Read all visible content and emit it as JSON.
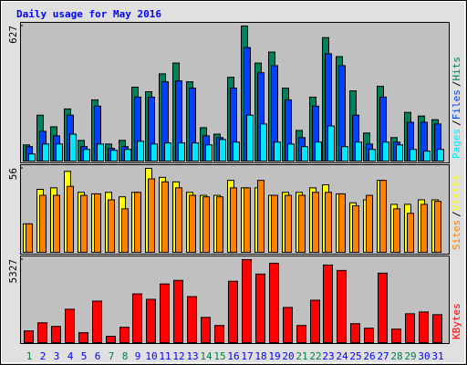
{
  "chart_data": [
    {
      "type": "bar",
      "title": "Daily usage for May 2016",
      "legend_separator": "/",
      "ylim": [
        0,
        627
      ],
      "yticks": [
        627
      ],
      "series": [
        {
          "name": "Hits",
          "color": "#00805c",
          "values": [
            75,
            213,
            159,
            242,
            96,
            284,
            79,
            96,
            343,
            322,
            405,
            455,
            368,
            155,
            125,
            389,
            627,
            455,
            506,
            339,
            142,
            297,
            573,
            485,
            326,
            130,
            347,
            109,
            226,
            209,
            192
          ]
        },
        {
          "name": "Files",
          "color": "#0040ff",
          "values": [
            67,
            138,
            117,
            213,
            67,
            255,
            59,
            67,
            297,
            297,
            368,
            372,
            339,
            117,
            109,
            339,
            527,
            410,
            443,
            284,
            109,
            255,
            498,
            443,
            213,
            79,
            297,
            88,
            180,
            180,
            172
          ]
        },
        {
          "name": "Pages",
          "color": "#00e8ff",
          "values": [
            33,
            79,
            79,
            125,
            54,
            79,
            50,
            54,
            92,
            79,
            84,
            84,
            84,
            75,
            100,
            88,
            213,
            172,
            88,
            79,
            67,
            88,
            163,
            67,
            88,
            54,
            88,
            75,
            54,
            46,
            54
          ]
        }
      ]
    },
    {
      "type": "bar",
      "legend_separator": "/",
      "ylim": [
        0,
        56
      ],
      "yticks": [
        56
      ],
      "series": [
        {
          "name": "Visits",
          "color": "#ffff00",
          "values": [
            19,
            42,
            43,
            54,
            40,
            39,
            40,
            37,
            40,
            56,
            50,
            47,
            40,
            38,
            38,
            48,
            43,
            43,
            38,
            40,
            40,
            43,
            45,
            39,
            33,
            35,
            48,
            32,
            32,
            35,
            35
          ]
        },
        {
          "name": "Sites",
          "color": "#ff8000",
          "values": [
            19,
            38,
            38,
            44,
            38,
            39,
            35,
            29,
            40,
            49,
            47,
            43,
            38,
            37,
            37,
            43,
            43,
            48,
            38,
            38,
            38,
            40,
            40,
            39,
            31,
            38,
            48,
            29,
            26,
            32,
            34
          ]
        }
      ]
    },
    {
      "type": "bar",
      "ylim": [
        0,
        5327
      ],
      "yticks": [
        5327
      ],
      "categories": [
        "1",
        "2",
        "3",
        "4",
        "5",
        "6",
        "7",
        "8",
        "9",
        "10",
        "11",
        "12",
        "13",
        "14",
        "15",
        "16",
        "17",
        "18",
        "19",
        "20",
        "21",
        "22",
        "23",
        "24",
        "25",
        "26",
        "27",
        "28",
        "29",
        "30",
        "31"
      ],
      "category_colors": [
        "#008040",
        "#0000ff",
        "#0000ff",
        "#0000ff",
        "#0000ff",
        "#0000ff",
        "#008040",
        "#008040",
        "#0000ff",
        "#0000ff",
        "#0000ff",
        "#0000ff",
        "#0000ff",
        "#008040",
        "#008040",
        "#0000ff",
        "#0000ff",
        "#0000ff",
        "#0000ff",
        "#0000ff",
        "#008040",
        "#008040",
        "#0000ff",
        "#0000ff",
        "#0000ff",
        "#0000ff",
        "#0000ff",
        "#008040",
        "#008040",
        "#0000ff",
        "#0000ff"
      ],
      "series": [
        {
          "name": "KBytes",
          "color": "#ff0000",
          "values": [
            753,
            1274,
            1042,
            2143,
            637,
            2664,
            405,
            985,
            3127,
            2780,
            3764,
            3995,
            2953,
            1621,
            1100,
            3938,
            5327,
            4401,
            5095,
            2259,
            1100,
            2722,
            4980,
            4632,
            1216,
            927,
            4458,
            869,
            1853,
            1969,
            1795
          ]
        }
      ]
    }
  ]
}
